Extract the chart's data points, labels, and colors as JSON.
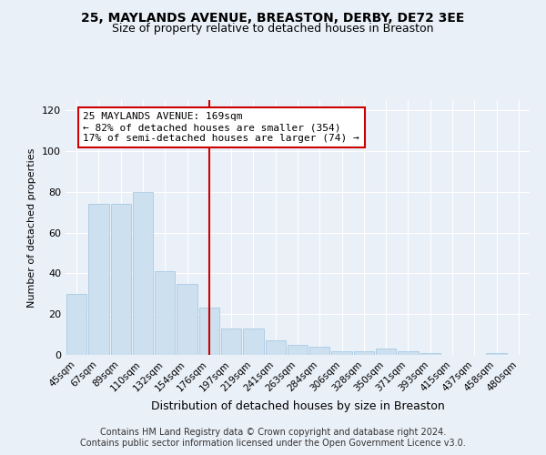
{
  "title1": "25, MAYLANDS AVENUE, BREASTON, DERBY, DE72 3EE",
  "title2": "Size of property relative to detached houses in Breaston",
  "xlabel": "Distribution of detached houses by size in Breaston",
  "ylabel": "Number of detached properties",
  "bar_labels": [
    "45sqm",
    "67sqm",
    "89sqm",
    "110sqm",
    "132sqm",
    "154sqm",
    "176sqm",
    "197sqm",
    "219sqm",
    "241sqm",
    "263sqm",
    "284sqm",
    "306sqm",
    "328sqm",
    "350sqm",
    "371sqm",
    "393sqm",
    "415sqm",
    "437sqm",
    "458sqm",
    "480sqm"
  ],
  "bar_values": [
    30,
    74,
    74,
    80,
    41,
    35,
    23,
    13,
    13,
    7,
    5,
    4,
    2,
    2,
    3,
    2,
    1,
    0,
    0,
    1,
    0
  ],
  "bar_color": "#cce0f0",
  "bar_edge_color": "#a0c4e0",
  "vline_x": 6,
  "vline_color": "#cc0000",
  "annotation_text": "25 MAYLANDS AVENUE: 169sqm\n← 82% of detached houses are smaller (354)\n17% of semi-detached houses are larger (74) →",
  "annotation_box_color": "#ffffff",
  "annotation_box_edge": "#cc0000",
  "ylim": [
    0,
    125
  ],
  "yticks": [
    0,
    20,
    40,
    60,
    80,
    100,
    120
  ],
  "footer1": "Contains HM Land Registry data © Crown copyright and database right 2024.",
  "footer2": "Contains public sector information licensed under the Open Government Licence v3.0.",
  "bg_color": "#eaf0f8",
  "plot_bg_color": "#eaf0f8",
  "title1_fontsize": 10,
  "title2_fontsize": 9,
  "xlabel_fontsize": 9,
  "ylabel_fontsize": 8,
  "footer_fontsize": 7,
  "annot_fontsize": 8
}
